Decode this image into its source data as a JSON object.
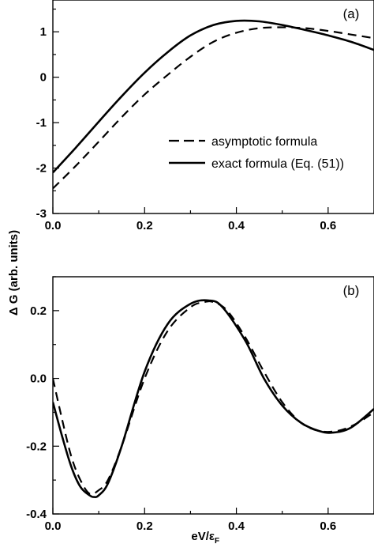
{
  "ylabel": "Δ G (arb. units)",
  "xlabel_main": "eV/ε",
  "xlabel_sub": "F",
  "chart_data": [
    {
      "type": "line",
      "panel_label": "(a)",
      "xlim": [
        0.0,
        0.7
      ],
      "ylim": [
        -3,
        1.7
      ],
      "x_ticks": [
        0.0,
        0.2,
        0.4,
        0.6
      ],
      "x_tick_labels": [
        "0.0",
        "0.2",
        "0.4",
        "0.6"
      ],
      "y_ticks": [
        -3,
        -2,
        -1,
        0,
        1
      ],
      "y_tick_labels": [
        "-3",
        "-2",
        "-1",
        "0",
        "1"
      ],
      "legend": [
        "asymptotic formula",
        "exact formula (Eq. (51))"
      ],
      "series": [
        {
          "name": "asymptotic formula",
          "style": "dashed",
          "x": [
            0.0,
            0.05,
            0.1,
            0.15,
            0.2,
            0.25,
            0.3,
            0.35,
            0.4,
            0.45,
            0.5,
            0.55,
            0.6,
            0.65,
            0.7
          ],
          "y": [
            -2.45,
            -1.95,
            -1.42,
            -0.88,
            -0.38,
            0.05,
            0.45,
            0.78,
            0.98,
            1.08,
            1.1,
            1.08,
            1.02,
            0.94,
            0.86
          ]
        },
        {
          "name": "exact formula (Eq. (51))",
          "style": "solid",
          "x": [
            0.0,
            0.05,
            0.1,
            0.15,
            0.2,
            0.25,
            0.3,
            0.35,
            0.4,
            0.45,
            0.5,
            0.55,
            0.6,
            0.65,
            0.7
          ],
          "y": [
            -2.1,
            -1.55,
            -0.98,
            -0.42,
            0.1,
            0.55,
            0.92,
            1.15,
            1.24,
            1.23,
            1.15,
            1.04,
            0.92,
            0.78,
            0.6
          ]
        }
      ]
    },
    {
      "type": "line",
      "panel_label": "(b)",
      "xlim": [
        0.0,
        0.7
      ],
      "ylim": [
        -0.4,
        0.3
      ],
      "x_ticks": [
        0.0,
        0.2,
        0.4,
        0.6
      ],
      "x_tick_labels": [
        "0.0",
        "0.2",
        "0.4",
        "0.6"
      ],
      "y_ticks": [
        -0.4,
        -0.2,
        0.0,
        0.2
      ],
      "y_tick_labels": [
        "-0.4",
        "-0.2",
        "0.0",
        "0.2"
      ],
      "series": [
        {
          "name": "asymptotic formula",
          "style": "dashed",
          "x": [
            0.0,
            0.02,
            0.04,
            0.06,
            0.08,
            0.1,
            0.12,
            0.15,
            0.2,
            0.25,
            0.3,
            0.33,
            0.35,
            0.38,
            0.42,
            0.46,
            0.5,
            0.54,
            0.58,
            0.62,
            0.66,
            0.7
          ],
          "y": [
            0.0,
            -0.12,
            -0.23,
            -0.3,
            -0.34,
            -0.33,
            -0.3,
            -0.2,
            0.0,
            0.14,
            0.21,
            0.225,
            0.225,
            0.2,
            0.12,
            0.02,
            -0.07,
            -0.13,
            -0.155,
            -0.155,
            -0.135,
            -0.1
          ]
        },
        {
          "name": "exact formula (Eq. (51))",
          "style": "solid",
          "x": [
            0.0,
            0.02,
            0.04,
            0.06,
            0.08,
            0.09,
            0.1,
            0.12,
            0.15,
            0.2,
            0.25,
            0.3,
            0.34,
            0.37,
            0.42,
            0.46,
            0.5,
            0.54,
            0.58,
            0.61,
            0.65,
            0.7
          ],
          "y": [
            -0.07,
            -0.17,
            -0.26,
            -0.32,
            -0.345,
            -0.35,
            -0.345,
            -0.31,
            -0.2,
            0.02,
            0.16,
            0.22,
            0.23,
            0.21,
            0.11,
            0.0,
            -0.08,
            -0.13,
            -0.155,
            -0.16,
            -0.145,
            -0.09
          ]
        }
      ]
    }
  ]
}
